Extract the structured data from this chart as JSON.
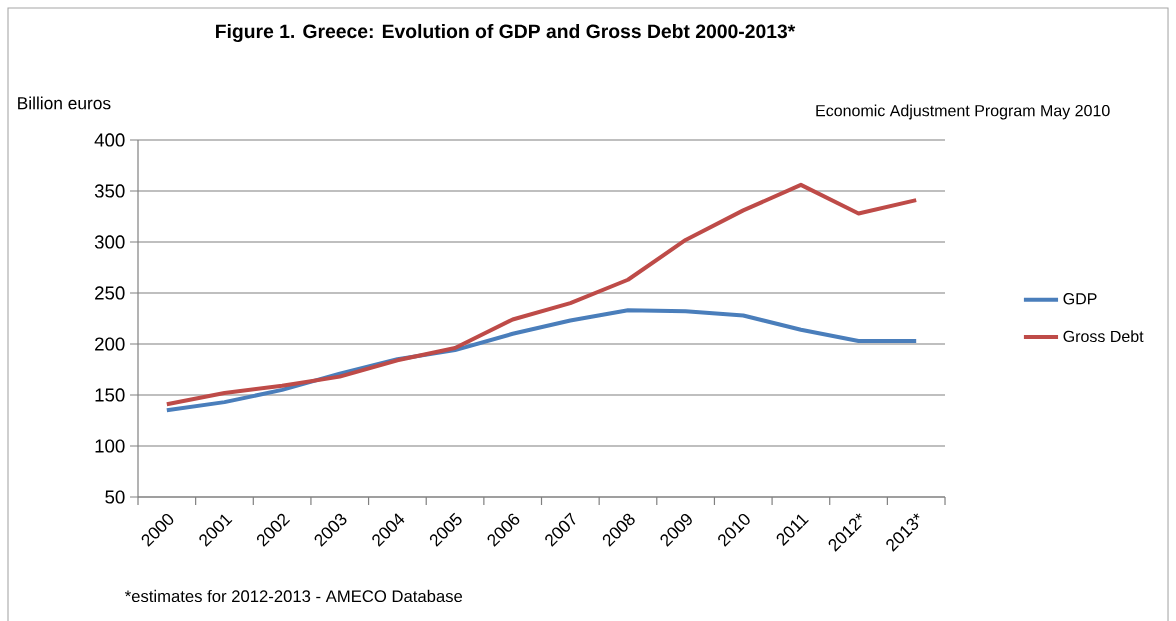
{
  "chart_data": {
    "type": "line",
    "title": "Figure 1.  Greece: Evolution of GDP and Gross Debt 2000-2013*",
    "subtitle": "Economic Adjustment Program May 2010",
    "ylabel": "Billion euros",
    "annotations": [
      "*estimates for 2012-2013 - AMECO Database"
    ],
    "categories": [
      "2000",
      "2001",
      "2002",
      "2003",
      "2004",
      "2005",
      "2006",
      "2007",
      "2008",
      "2009",
      "2010",
      "2011",
      "2012*",
      "2013*"
    ],
    "series": [
      {
        "name": "GDP",
        "color": "#4a7ebb",
        "values": [
          135,
          143,
          155,
          171,
          185,
          194,
          210,
          223,
          233,
          232,
          228,
          214,
          203,
          203
        ]
      },
      {
        "name": "Gross Debt",
        "color": "#be4b48",
        "values": [
          141,
          152,
          159,
          168,
          184,
          196,
          224,
          240,
          263,
          302,
          331,
          356,
          328,
          341
        ]
      }
    ],
    "ylim": [
      50,
      400
    ],
    "yticks": [
      50,
      100,
      150,
      200,
      250,
      300,
      350,
      400
    ],
    "grid": "y",
    "legend": "right"
  }
}
